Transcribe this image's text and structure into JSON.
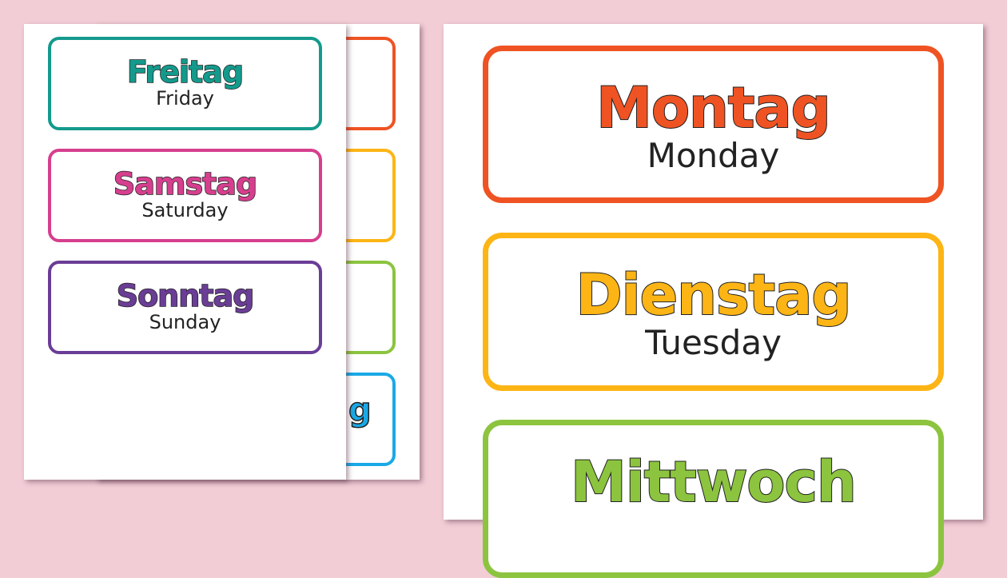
{
  "colors": {
    "background": "#f2cdd6",
    "orange": "#ef5323",
    "yellow": "#fdb515",
    "green": "#8cc43f",
    "blue": "#1aa9e6",
    "teal": "#149a8c",
    "pink": "#d63f8e",
    "purple": "#6a3d96"
  },
  "left_sheet": {
    "cards": [
      {
        "german": "Freitag",
        "english": "Friday"
      },
      {
        "german": "Samstag",
        "english": "Saturday"
      },
      {
        "german": "Sonntag",
        "english": "Sunday"
      }
    ]
  },
  "middle_sheet": {
    "partial_glyph": "g"
  },
  "right_sheet": {
    "cards": [
      {
        "german": "Montag",
        "english": "Monday"
      },
      {
        "german": "Dienstag",
        "english": "Tuesday"
      },
      {
        "german": "Mittwoch",
        "english": ""
      }
    ]
  }
}
